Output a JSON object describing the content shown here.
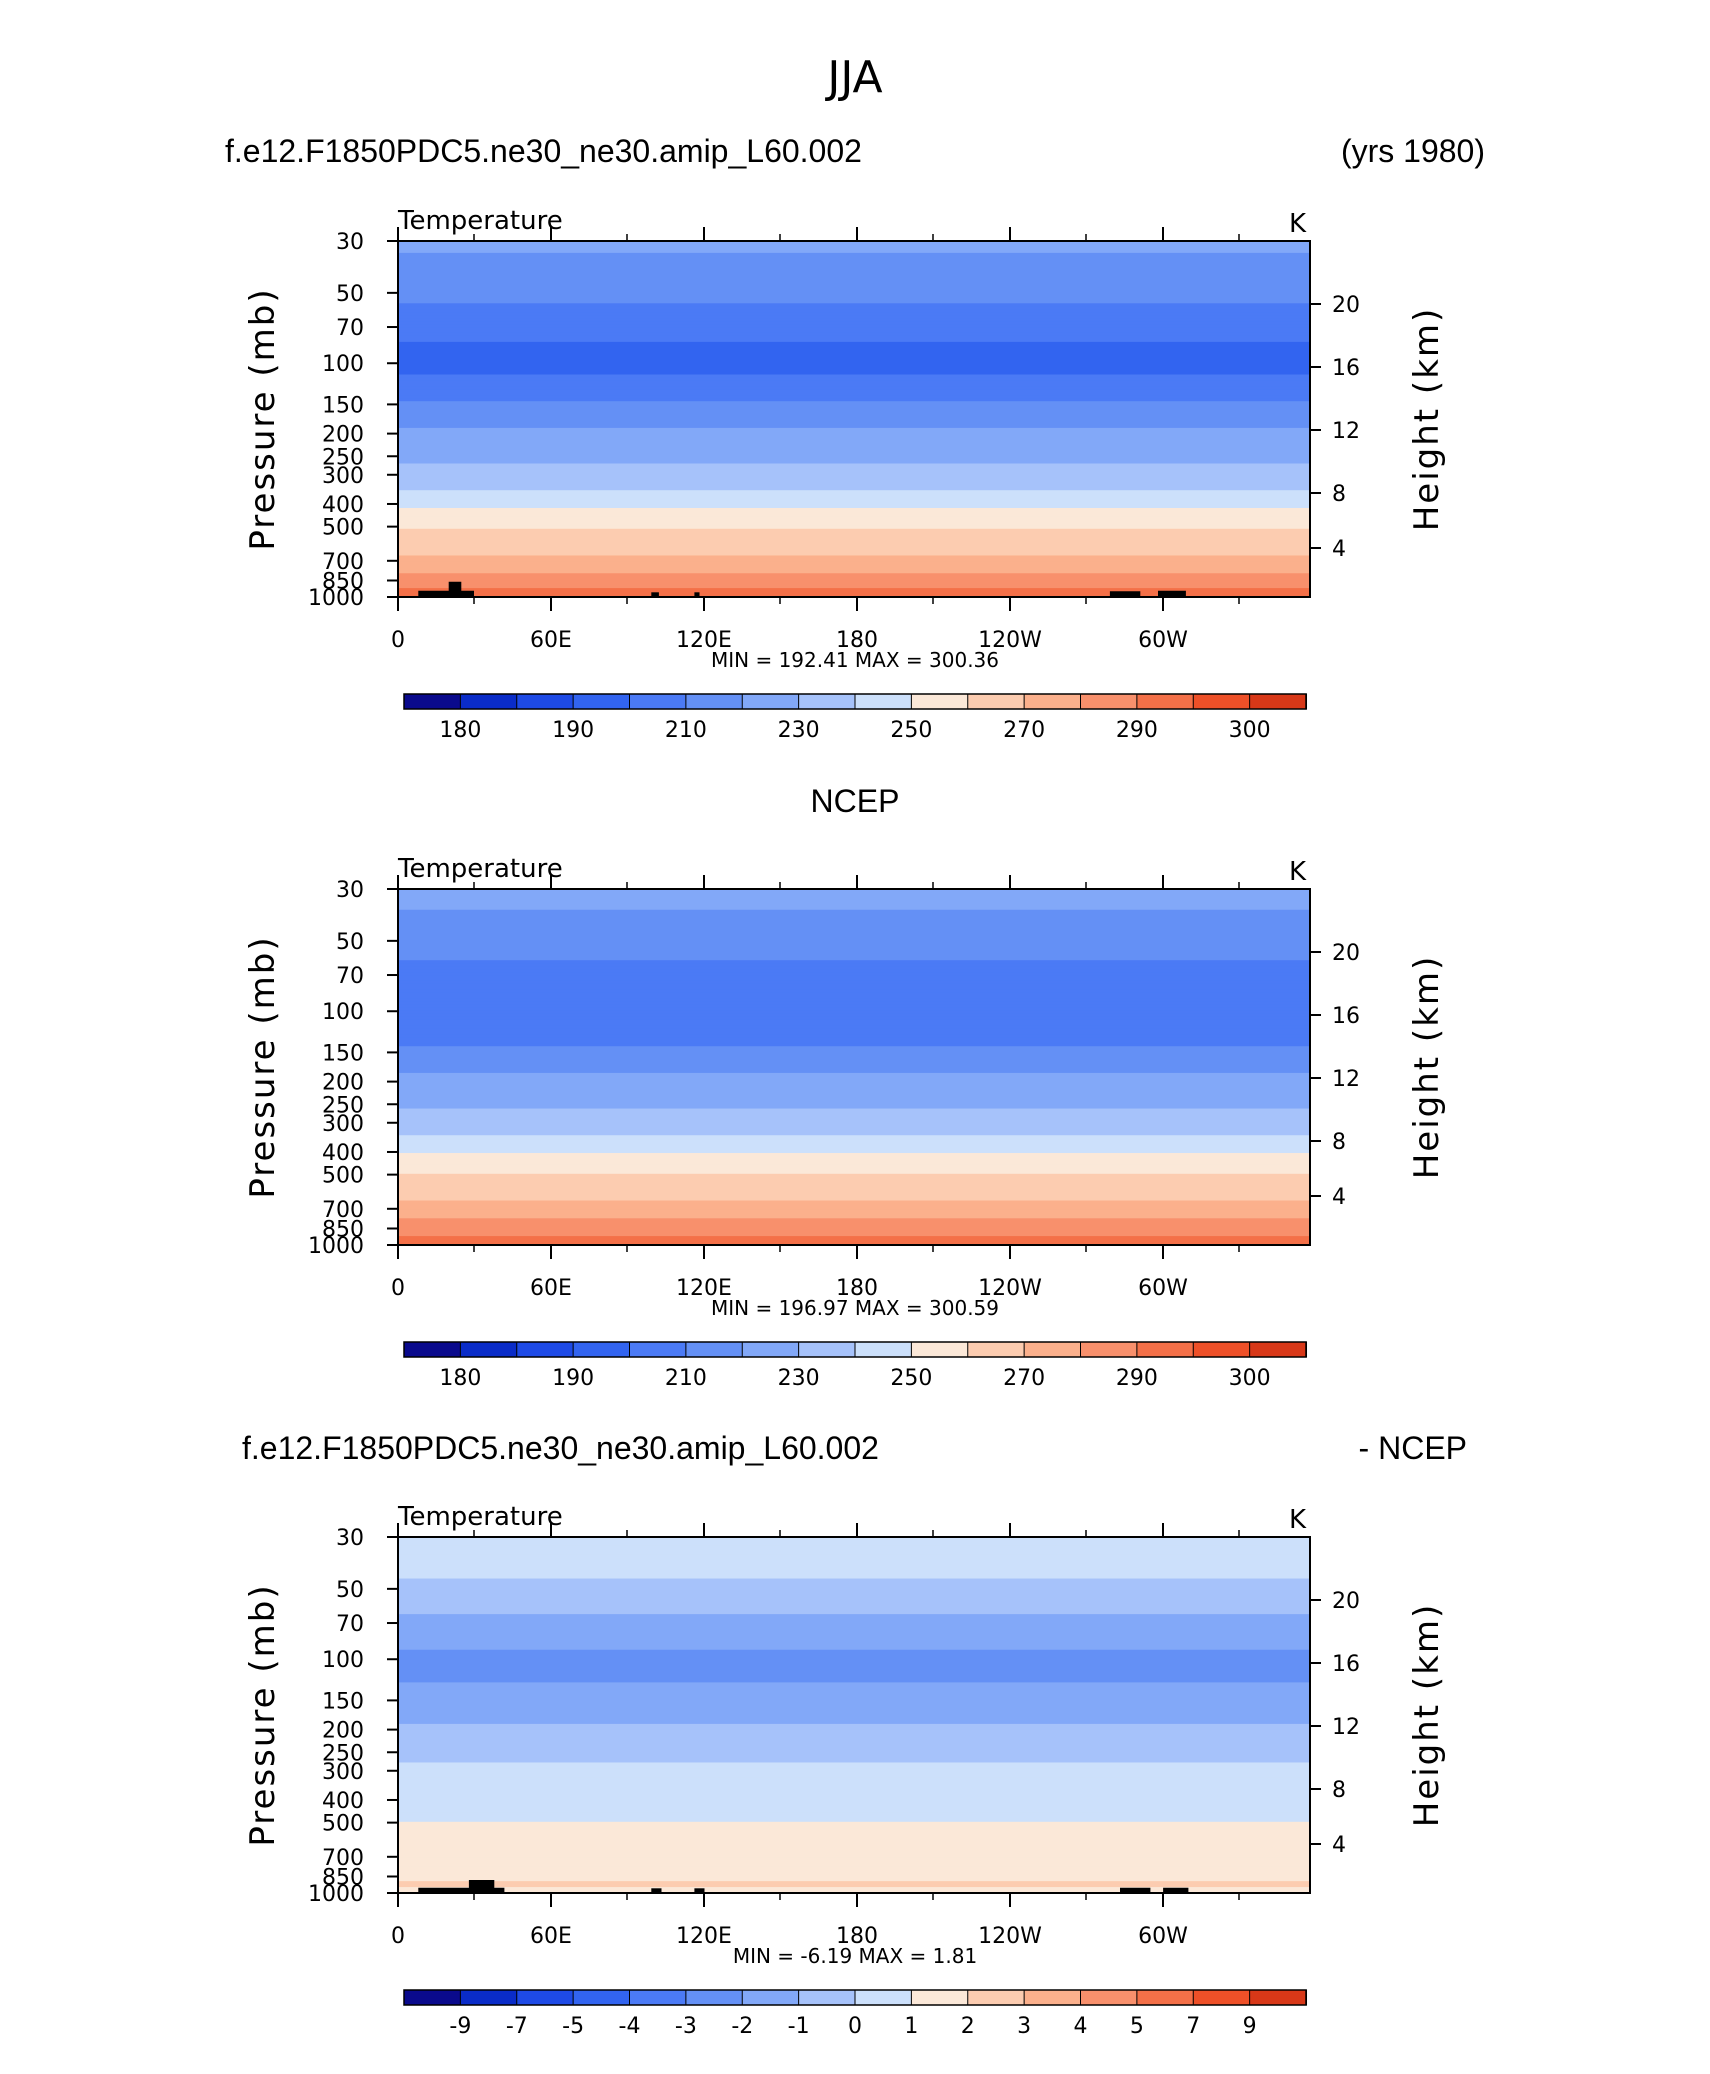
{
  "figure": {
    "title": "JJA",
    "background": "#ffffff",
    "line_color": "#000000",
    "contour_colors": [
      "#0a0a8c",
      "#0a2cc8",
      "#1e4ae6",
      "#3264f0",
      "#4b7af5",
      "#6490f5",
      "#82a8f8",
      "#a6c2fa",
      "#cce0fb",
      "#fbe8d8",
      "#fcccb0",
      "#fbb08c",
      "#f8906c",
      "#f47048",
      "#ee5028",
      "#d83818",
      "#b82010",
      "#8a0a08"
    ]
  },
  "chart_data": [
    {
      "type": "heatmap",
      "header_left": "f.e12.F1850PDC5.ne30_ne30.amip_L60.002",
      "header_right": "(yrs 1980)",
      "variable": "Temperature",
      "units": "K",
      "xlabel": "",
      "ylabel": "Pressure (mb)",
      "ylabel_right": "Height (km)",
      "x_ticks": [
        "0",
        "60E",
        "120E",
        "180",
        "120W",
        "60W"
      ],
      "y_ticks": [
        "30",
        "50",
        "70",
        "100",
        "150",
        "200",
        "250",
        "300",
        "400",
        "500",
        "700",
        "850",
        "1000"
      ],
      "y_ticks_right": [
        "20",
        "16",
        "12",
        "8",
        "4"
      ],
      "ylim": [
        1000,
        30
      ],
      "y_scale": "log",
      "xlim": [
        0,
        360
      ],
      "stats": {
        "min": "192.41",
        "max": "300.36"
      },
      "stats_text": "MIN = 192.41   MAX = 300.36",
      "colorbar_labels": [
        "180",
        "190",
        "210",
        "230",
        "250",
        "270",
        "290",
        "300"
      ],
      "colorbar_levels": [
        175,
        180,
        185,
        190,
        200,
        210,
        220,
        230,
        240,
        250,
        260,
        270,
        280,
        290,
        295,
        300,
        305
      ],
      "profile": {
        "p": [
          30,
          40,
          50,
          60,
          70,
          80,
          100,
          125,
          150,
          175,
          200,
          250,
          300,
          350,
          400,
          450,
          500,
          600,
          700,
          775,
          850,
          925,
          1000
        ],
        "temp": [
          221,
          218,
          212,
          208,
          204,
          200,
          198,
          202,
          212,
          217,
          222,
          228,
          234,
          240,
          248,
          254,
          259,
          266,
          273,
          279,
          284,
          290,
          296
        ]
      },
      "topography_polys": [
        [
          [
            8,
            1000
          ],
          [
            8,
            940
          ],
          [
            20,
            940
          ],
          [
            20,
            860
          ],
          [
            25,
            860
          ],
          [
            25,
            940
          ],
          [
            30,
            940
          ],
          [
            30,
            1000
          ]
        ],
        [
          [
            300,
            1000
          ],
          [
            300,
            940
          ],
          [
            311,
            940
          ],
          [
            311,
            1000
          ]
        ],
        [
          [
            281,
            1000
          ],
          [
            281,
            945
          ],
          [
            293,
            945
          ],
          [
            293,
            1000
          ]
        ],
        [
          [
            100,
            1000
          ],
          [
            100,
            955
          ],
          [
            103,
            955
          ],
          [
            103,
            1000
          ]
        ],
        [
          [
            117,
            1000
          ],
          [
            117,
            955
          ],
          [
            119,
            955
          ],
          [
            119,
            1000
          ]
        ]
      ]
    },
    {
      "type": "heatmap",
      "header_center": "NCEP",
      "variable": "Temperature",
      "units": "K",
      "xlabel": "",
      "ylabel": "Pressure (mb)",
      "ylabel_right": "Height (km)",
      "x_ticks": [
        "0",
        "60E",
        "120E",
        "180",
        "120W",
        "60W"
      ],
      "y_ticks": [
        "30",
        "50",
        "70",
        "100",
        "150",
        "200",
        "250",
        "300",
        "400",
        "500",
        "700",
        "850",
        "1000"
      ],
      "y_ticks_right": [
        "20",
        "16",
        "12",
        "8",
        "4"
      ],
      "ylim": [
        1000,
        30
      ],
      "y_scale": "log",
      "xlim": [
        0,
        360
      ],
      "stats": {
        "min": "196.97",
        "max": "300.59"
      },
      "stats_text": "MIN = 196.97   MAX = 300.59",
      "colorbar_labels": [
        "180",
        "190",
        "210",
        "230",
        "250",
        "270",
        "290",
        "300"
      ],
      "colorbar_levels": [
        175,
        180,
        185,
        190,
        200,
        210,
        220,
        230,
        240,
        250,
        260,
        270,
        280,
        290,
        295,
        300,
        305
      ],
      "profile": {
        "p": [
          30,
          40,
          50,
          60,
          70,
          80,
          100,
          125,
          150,
          175,
          200,
          250,
          300,
          350,
          400,
          450,
          500,
          600,
          700,
          775,
          850,
          925,
          1000
        ],
        "temp": [
          222,
          219,
          214,
          210,
          206,
          202,
          200,
          204,
          213,
          218,
          223,
          229,
          235,
          241,
          249,
          255,
          260,
          267,
          274,
          280,
          285,
          291,
          295
        ]
      },
      "topography_polys": []
    },
    {
      "type": "heatmap",
      "header_left": "f.e12.F1850PDC5.ne30_ne30.amip_L60.002",
      "header_right": "- NCEP",
      "variable": "Temperature",
      "units": "K",
      "xlabel": "",
      "ylabel": "Pressure (mb)",
      "ylabel_right": "Height (km)",
      "x_ticks": [
        "0",
        "60E",
        "120E",
        "180",
        "120W",
        "60W"
      ],
      "y_ticks": [
        "30",
        "50",
        "70",
        "100",
        "150",
        "200",
        "250",
        "300",
        "400",
        "500",
        "700",
        "850",
        "1000"
      ],
      "y_ticks_right": [
        "20",
        "16",
        "12",
        "8",
        "4"
      ],
      "ylim": [
        1000,
        30
      ],
      "y_scale": "log",
      "xlim": [
        0,
        360
      ],
      "stats": {
        "min": "-6.19",
        "max": "1.81"
      },
      "stats_text": "MIN =    -6.19   MAX =      1.81",
      "colorbar_labels": [
        "-9",
        "-7",
        "-5",
        "-4",
        "-3",
        "-2",
        "-1",
        "0",
        "1",
        "2",
        "3",
        "4",
        "5",
        "7",
        "9"
      ],
      "colorbar_levels": [
        -10,
        -9,
        -8,
        -7,
        -6,
        -5,
        -4,
        -3,
        -2,
        -1,
        0,
        1,
        2,
        3,
        4,
        5,
        7,
        9
      ],
      "profile": {
        "p": [
          30,
          40,
          50,
          60,
          70,
          80,
          100,
          125,
          150,
          175,
          200,
          250,
          300,
          350,
          400,
          450,
          500,
          600,
          700,
          775,
          850,
          925,
          1000
        ],
        "temp": [
          -1.6,
          -1.8,
          -2.2,
          -2.8,
          -3.4,
          -3.8,
          -4.2,
          -4.0,
          -3.6,
          -3.2,
          -2.8,
          -2.3,
          -1.8,
          -1.4,
          -1.2,
          -1.1,
          -1.0,
          -0.8,
          -0.6,
          -0.4,
          -0.2,
          0.2,
          -0.3
        ]
      },
      "topography_polys": [
        [
          [
            8,
            1000
          ],
          [
            8,
            950
          ],
          [
            28,
            950
          ],
          [
            28,
            880
          ],
          [
            38,
            880
          ],
          [
            38,
            950
          ],
          [
            42,
            950
          ],
          [
            42,
            1000
          ]
        ],
        [
          [
            285,
            1000
          ],
          [
            285,
            950
          ],
          [
            297,
            950
          ],
          [
            297,
            1000
          ]
        ],
        [
          [
            302,
            1000
          ],
          [
            302,
            950
          ],
          [
            312,
            950
          ],
          [
            312,
            1000
          ]
        ],
        [
          [
            100,
            1000
          ],
          [
            100,
            955
          ],
          [
            104,
            955
          ],
          [
            104,
            1000
          ]
        ],
        [
          [
            117,
            1000
          ],
          [
            117,
            955
          ],
          [
            121,
            955
          ],
          [
            121,
            1000
          ]
        ]
      ]
    }
  ]
}
